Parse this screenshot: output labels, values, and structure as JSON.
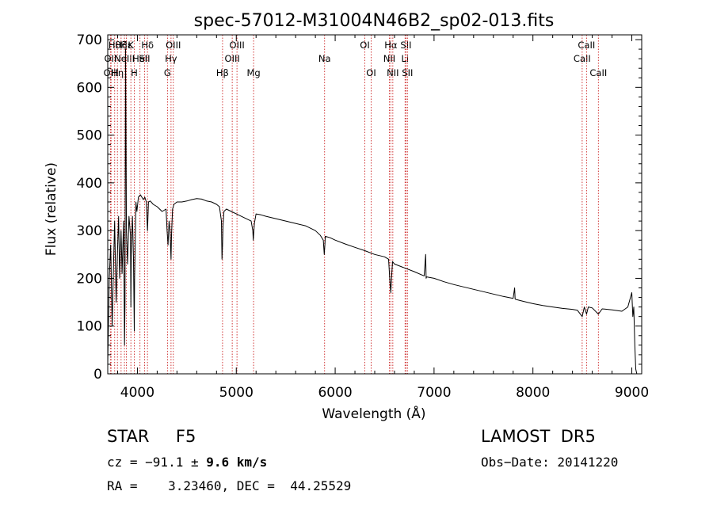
{
  "chart_data": {
    "type": "line",
    "title": "spec-57012-M31004N46B2_sp02-013.fits",
    "xlabel": "Wavelength (Å)",
    "ylabel": "Flux (relative)",
    "xlim": [
      3700,
      9100
    ],
    "ylim": [
      0,
      710
    ],
    "xticks": [
      4000,
      5000,
      6000,
      7000,
      8000,
      9000
    ],
    "yticks": [
      0,
      100,
      200,
      300,
      400,
      500,
      600,
      700
    ],
    "grid": false,
    "line_color": "#000000",
    "marker_color": "#cc2222",
    "series": [
      {
        "x": [
          3700,
          3715,
          3730,
          3745,
          3760,
          3770,
          3785,
          3798,
          3810,
          3820,
          3835,
          3845,
          3860,
          3870,
          3875,
          3880,
          3889,
          3900,
          3915,
          3930,
          3934,
          3938,
          3950,
          3960,
          3968,
          3972,
          3985,
          3995,
          4010,
          4030,
          4060,
          4075,
          4090,
          4102,
          4112,
          4130,
          4160,
          4200,
          4250,
          4290,
          4300,
          4310,
          4320,
          4330,
          4340,
          4345,
          4355,
          4370,
          4400,
          4450,
          4500,
          4550,
          4600,
          4650,
          4700,
          4750,
          4800,
          4830,
          4850,
          4855,
          4861,
          4866,
          4875,
          4900,
          4950,
          5000,
          5050,
          5100,
          5150,
          5167,
          5172,
          5183,
          5200,
          5250,
          5300,
          5400,
          5500,
          5600,
          5700,
          5800,
          5850,
          5880,
          5890,
          5896,
          5900,
          5950,
          6000,
          6100,
          6200,
          6300,
          6400,
          6500,
          6540,
          6555,
          6563,
          6570,
          6580,
          6600,
          6700,
          6800,
          6900,
          6915,
          6920,
          6925,
          7000,
          7100,
          7200,
          7300,
          7400,
          7500,
          7600,
          7700,
          7800,
          7815,
          7820,
          7825,
          7900,
          8000,
          8100,
          8200,
          8300,
          8400,
          8450,
          8498,
          8520,
          8542,
          8560,
          8600,
          8662,
          8700,
          8800,
          8900,
          8960,
          9000,
          9010,
          9020,
          9030,
          9040,
          9050
        ],
        "y": [
          20,
          200,
          270,
          100,
          240,
          320,
          150,
          250,
          330,
          200,
          300,
          210,
          320,
          60,
          150,
          680,
          300,
          230,
          330,
          290,
          140,
          250,
          330,
          240,
          90,
          200,
          360,
          340,
          370,
          375,
          365,
          370,
          360,
          300,
          360,
          362,
          355,
          350,
          340,
          345,
          300,
          270,
          320,
          300,
          240,
          290,
          345,
          355,
          360,
          360,
          362,
          365,
          367,
          366,
          362,
          360,
          355,
          350,
          320,
          240,
          270,
          310,
          340,
          345,
          340,
          335,
          330,
          325,
          320,
          300,
          280,
          315,
          335,
          333,
          330,
          325,
          320,
          315,
          310,
          300,
          290,
          280,
          250,
          270,
          288,
          285,
          280,
          272,
          265,
          258,
          250,
          245,
          240,
          190,
          170,
          200,
          235,
          230,
          222,
          214,
          205,
          250,
          200,
          203,
          200,
          193,
          187,
          182,
          177,
          172,
          167,
          162,
          158,
          180,
          157,
          156,
          152,
          147,
          143,
          140,
          137,
          135,
          133,
          120,
          140,
          125,
          140,
          138,
          125,
          136,
          134,
          131,
          140,
          170,
          120,
          140,
          60,
          10,
          0
        ]
      }
    ],
    "line_markers": [
      {
        "x": 3727,
        "label": "OII",
        "row": 1
      },
      {
        "x": 3734,
        "label": "OIII",
        "row": 2
      },
      {
        "x": 3770,
        "label": "Hθ",
        "row": 0
      },
      {
        "x": 3798,
        "label": "Hη",
        "row": 2
      },
      {
        "x": 3835,
        "label": "Hζ",
        "row": 0
      },
      {
        "x": 3869,
        "label": "NeIII",
        "row": 1
      },
      {
        "x": 3889,
        "label": "Hε",
        "row": 0
      },
      {
        "x": 3934,
        "label": "K",
        "row": 0
      },
      {
        "x": 3968,
        "label": "H",
        "row": 2
      },
      {
        "x": 4026,
        "label": "HeI",
        "row": 1
      },
      {
        "x": 4072,
        "label": "SII",
        "row": 1
      },
      {
        "x": 4102,
        "label": "Hδ",
        "row": 0
      },
      {
        "x": 4304,
        "label": "G",
        "row": 2
      },
      {
        "x": 4340,
        "label": "Hγ",
        "row": 1
      },
      {
        "x": 4363,
        "label": "OIII",
        "row": 0
      },
      {
        "x": 4861,
        "label": "Hβ",
        "row": 2
      },
      {
        "x": 4959,
        "label": "OIII",
        "row": 1
      },
      {
        "x": 5007,
        "label": "OIII",
        "row": 0
      },
      {
        "x": 5175,
        "label": "Mg",
        "row": 2
      },
      {
        "x": 5893,
        "label": "Na",
        "row": 1
      },
      {
        "x": 6300,
        "label": "OI",
        "row": 0
      },
      {
        "x": 6364,
        "label": "OI",
        "row": 2
      },
      {
        "x": 6548,
        "label": "NII",
        "row": 1
      },
      {
        "x": 6563,
        "label": "Hα",
        "row": 0
      },
      {
        "x": 6583,
        "label": "NII",
        "row": 2
      },
      {
        "x": 6707,
        "label": "Li",
        "row": 1
      },
      {
        "x": 6716,
        "label": "SII",
        "row": 0
      },
      {
        "x": 6731,
        "label": "SII",
        "row": 2
      },
      {
        "x": 8498,
        "label": "CaII",
        "row": 1
      },
      {
        "x": 8542,
        "label": "CaII",
        "row": 0
      },
      {
        "x": 8662,
        "label": "CaII",
        "row": 2
      }
    ]
  },
  "info": {
    "classification": "STAR     F5",
    "survey": "LAMOST  DR5",
    "cz_prefix": "cz = −91.1 ± ",
    "cz_error": "9.6 km/s",
    "obs_date": "Obs−Date: 20141220",
    "coords": "RA =    3.23460, DEC =  44.25529"
  }
}
